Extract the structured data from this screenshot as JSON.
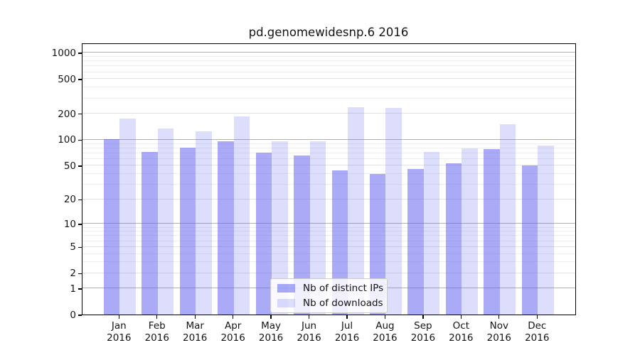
{
  "title": "pd.genomewidesnp.6 2016",
  "colors": {
    "bar_distinct_ips": "rgba(100,100,240,0.55)",
    "bar_downloads": "rgba(100,100,240,0.22)",
    "grid_major": "#b0b0b0",
    "grid_minor_labeled": "#e3e3e3",
    "grid_minor_unlabeled": "#eeeeee"
  },
  "legend": {
    "items": [
      {
        "label": "Nb of distinct IPs",
        "color": "rgba(100,100,240,0.55)"
      },
      {
        "label": "Nb of downloads",
        "color": "rgba(100,100,240,0.22)"
      }
    ]
  },
  "y_axis": {
    "tick_values": [
      0,
      1,
      2,
      5,
      10,
      20,
      50,
      100,
      200,
      500,
      1000
    ],
    "tick_labels": [
      "0",
      "1",
      "2",
      "5",
      "10",
      "20",
      "50",
      "100",
      "200",
      "500",
      "1000"
    ]
  },
  "x_axis": {
    "months": [
      "Jan",
      "Feb",
      "Mar",
      "Apr",
      "May",
      "Jun",
      "Jul",
      "Aug",
      "Sep",
      "Oct",
      "Nov",
      "Dec"
    ],
    "year": "2016"
  },
  "chart_data": {
    "type": "bar",
    "title": "pd.genomewidesnp.6 2016",
    "categories": [
      "Jan 2016",
      "Feb 2016",
      "Mar 2016",
      "Apr 2016",
      "May 2016",
      "Jun 2016",
      "Jul 2016",
      "Aug 2016",
      "Sep 2016",
      "Oct 2016",
      "Nov 2016",
      "Dec 2016"
    ],
    "series": [
      {
        "name": "Nb of distinct IPs",
        "values": [
          100,
          72,
          80,
          95,
          70,
          65,
          44,
          40,
          45,
          53,
          77,
          50
        ]
      },
      {
        "name": "Nb of downloads",
        "values": [
          175,
          135,
          125,
          185,
          95,
          95,
          235,
          230,
          72,
          79,
          150,
          85
        ]
      }
    ],
    "yscale": "log(1+x)",
    "yticks": [
      0,
      1,
      2,
      5,
      10,
      20,
      50,
      100,
      200,
      500,
      1000
    ],
    "ylim": [
      0,
      1280
    ],
    "grid": "horizontal",
    "legend_position": "lower center inside plot"
  }
}
